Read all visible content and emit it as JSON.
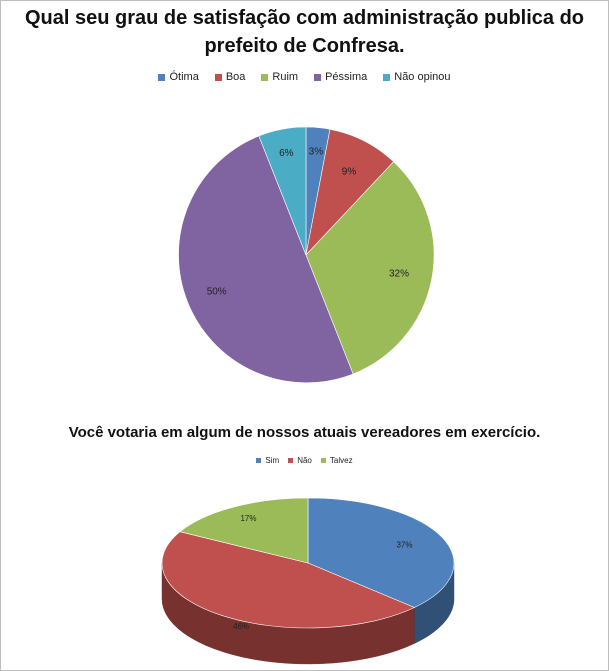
{
  "chart_data": [
    {
      "type": "pie",
      "title": "Qual seu grau de satisfação com administração publica do prefeito de Confresa.",
      "title_lines": [
        "Qual seu grau de satisfação com administração publica do",
        "prefeito de Confresa."
      ],
      "legend_position": "top",
      "categories": [
        "Ótima",
        "Boa",
        "Ruim",
        "Péssima",
        "Não opinou"
      ],
      "values": [
        3,
        9,
        32,
        50,
        6
      ],
      "labels": [
        "3%",
        "9%",
        "32%",
        "50%",
        "6%"
      ],
      "colors": [
        "#4f81bd",
        "#c0504d",
        "#9bbb59",
        "#8064a2",
        "#4bacc6"
      ]
    },
    {
      "type": "pie",
      "style": "3d",
      "title": "Você votaria em algum de nossos atuais vereadores em exercício.",
      "legend_position": "top",
      "categories": [
        "Sim",
        "Não",
        "Talvez"
      ],
      "values": [
        37,
        46,
        17
      ],
      "labels": [
        "37%",
        "46%",
        "17%"
      ],
      "colors": [
        "#4f81bd",
        "#c0504d",
        "#9bbb59"
      ]
    }
  ]
}
